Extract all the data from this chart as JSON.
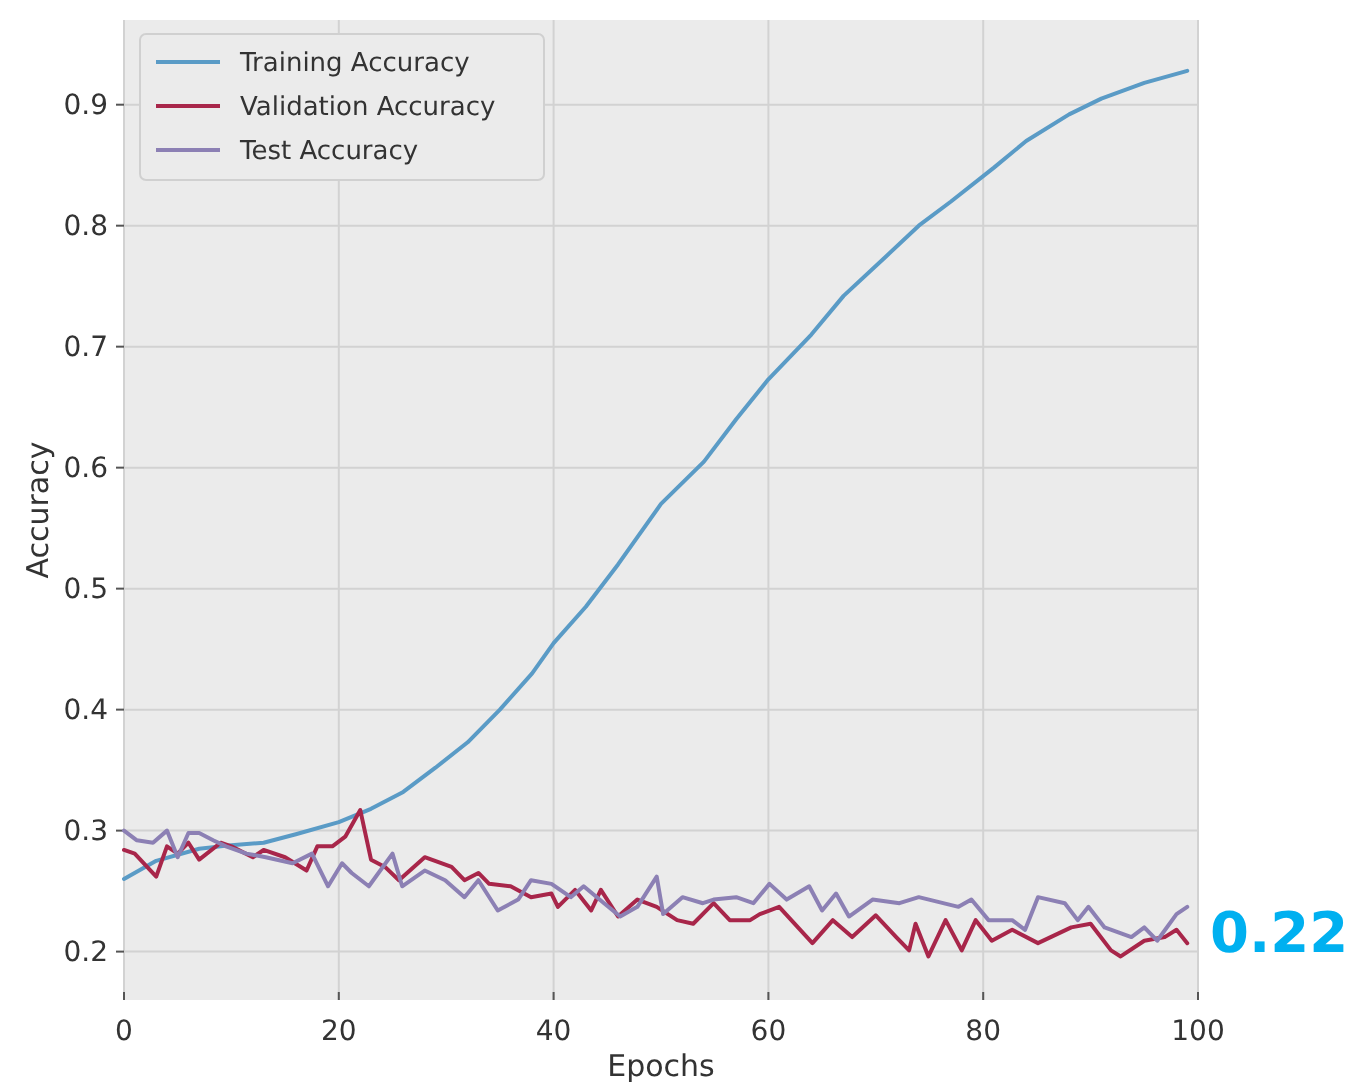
{
  "chart_data": {
    "type": "line",
    "xlabel": "Epochs",
    "ylabel": "Accuracy",
    "xlim": [
      0,
      100
    ],
    "ylim": [
      0.16,
      0.97
    ],
    "xticks": [
      0,
      20,
      40,
      60,
      80,
      100
    ],
    "yticks": [
      0.2,
      0.3,
      0.4,
      0.5,
      0.6,
      0.7,
      0.8,
      0.9
    ],
    "grid": true,
    "legend": "top left",
    "line_style": "solid",
    "marker": "none",
    "series": [
      {
        "name": "Training Accuracy",
        "color": "#5a9bc6",
        "x": [
          0,
          3,
          7,
          10,
          13,
          16,
          20,
          23,
          26,
          29,
          32,
          35,
          38,
          40,
          43,
          46,
          50,
          54,
          57,
          60,
          64,
          67,
          71,
          74,
          77,
          81,
          84,
          88,
          91,
          95,
          99
        ],
        "values": [
          0.26,
          0.275,
          0.285,
          0.288,
          0.29,
          0.297,
          0.307,
          0.318,
          0.332,
          0.352,
          0.373,
          0.4,
          0.43,
          0.455,
          0.485,
          0.52,
          0.57,
          0.605,
          0.64,
          0.673,
          0.71,
          0.742,
          0.775,
          0.8,
          0.82,
          0.848,
          0.87,
          0.892,
          0.905,
          0.918,
          0.928
        ]
      },
      {
        "name": "Validation Accuracy",
        "color": "#a8264a",
        "x": [
          0,
          1,
          3,
          4,
          5,
          6,
          7,
          9,
          10,
          12,
          13,
          15,
          17,
          18,
          19.4,
          20.6,
          22,
          23,
          24.3,
          25.6,
          28,
          30.5,
          31.7,
          33,
          34,
          36,
          37.9,
          39.8,
          40.4,
          42,
          43.5,
          44.4,
          46,
          47.8,
          49.6,
          51.5,
          53,
          54.9,
          56.4,
          58.3,
          59.2,
          61,
          64.1,
          66,
          67.8,
          70,
          71.9,
          73.1,
          73.7,
          74.9,
          76.5,
          78,
          79.3,
          80.8,
          82.7,
          85.1,
          88.2,
          90,
          91.9,
          92.8,
          95,
          96.9,
          98,
          99
        ],
        "values": [
          0.284,
          0.281,
          0.262,
          0.287,
          0.281,
          0.29,
          0.276,
          0.29,
          0.287,
          0.278,
          0.284,
          0.278,
          0.267,
          0.287,
          0.287,
          0.295,
          0.317,
          0.276,
          0.27,
          0.259,
          0.278,
          0.27,
          0.259,
          0.265,
          0.256,
          0.254,
          0.245,
          0.248,
          0.237,
          0.251,
          0.234,
          0.251,
          0.229,
          0.243,
          0.237,
          0.226,
          0.223,
          0.24,
          0.226,
          0.226,
          0.231,
          0.237,
          0.207,
          0.226,
          0.212,
          0.23,
          0.212,
          0.201,
          0.223,
          0.196,
          0.226,
          0.201,
          0.226,
          0.209,
          0.218,
          0.207,
          0.22,
          0.223,
          0.201,
          0.196,
          0.209,
          0.212,
          0.218,
          0.207
        ]
      },
      {
        "name": "Test Accuracy",
        "color": "#8c80b4",
        "x": [
          0,
          1.2,
          2.7,
          4,
          5,
          6,
          7,
          8.3,
          9.5,
          11.4,
          13.2,
          15.7,
          17.5,
          19,
          20.3,
          21.2,
          22.8,
          25,
          25.9,
          28,
          29.9,
          31.7,
          33,
          34.8,
          36.7,
          37.9,
          39.8,
          41.6,
          42.8,
          44.7,
          46.2,
          47.8,
          49.6,
          50.2,
          52,
          53.9,
          54.9,
          57,
          58.6,
          60.1,
          61.7,
          63.8,
          65,
          66.3,
          67.5,
          69.7,
          72.2,
          74,
          77.7,
          78.9,
          80.5,
          82.7,
          83.9,
          85.1,
          87.6,
          88.8,
          89.8,
          91.3,
          93.8,
          95,
          96.2,
          98,
          99
        ],
        "values": [
          0.3,
          0.292,
          0.29,
          0.3,
          0.278,
          0.298,
          0.298,
          0.292,
          0.287,
          0.281,
          0.278,
          0.273,
          0.281,
          0.254,
          0.273,
          0.265,
          0.254,
          0.281,
          0.254,
          0.267,
          0.259,
          0.245,
          0.259,
          0.234,
          0.243,
          0.259,
          0.256,
          0.245,
          0.254,
          0.24,
          0.229,
          0.237,
          0.262,
          0.231,
          0.245,
          0.24,
          0.243,
          0.245,
          0.24,
          0.256,
          0.243,
          0.254,
          0.234,
          0.248,
          0.229,
          0.243,
          0.24,
          0.245,
          0.237,
          0.243,
          0.226,
          0.226,
          0.218,
          0.245,
          0.24,
          0.226,
          0.237,
          0.22,
          0.212,
          0.22,
          0.209,
          0.231,
          0.237
        ]
      }
    ],
    "annotations": [
      "0.22"
    ]
  }
}
